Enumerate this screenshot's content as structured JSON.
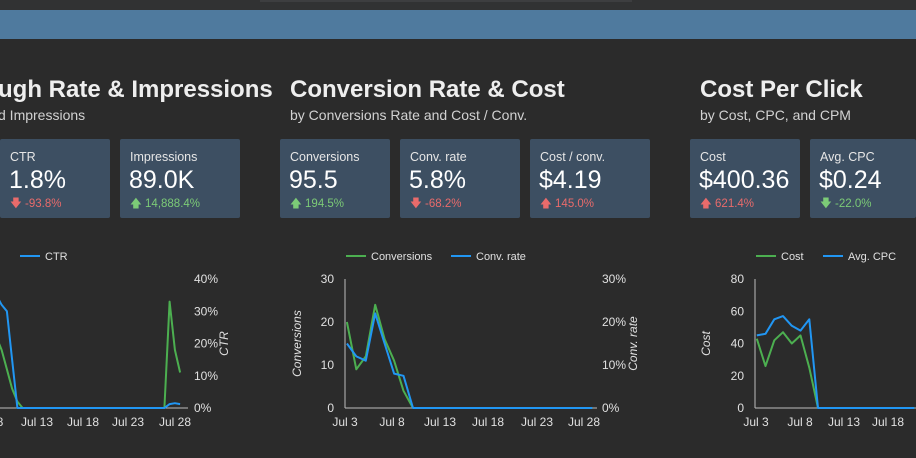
{
  "sections": [
    {
      "title": "ugh Rate & Impressions",
      "subtitle": "d Impressions",
      "cards": [
        {
          "label": "CTR",
          "value": "1.8%",
          "change": "-93.8%",
          "dir": "down"
        },
        {
          "label": "Impressions",
          "value": "89.0K",
          "change": "14,888.4%",
          "dir": "up"
        }
      ]
    },
    {
      "title": "Conversion Rate & Cost",
      "subtitle": "by Conversions Rate and Cost / Conv.",
      "cards": [
        {
          "label": "Conversions",
          "value": "95.5",
          "change": "194.5%",
          "dir": "up"
        },
        {
          "label": "Conv. rate",
          "value": "5.8%",
          "change": "-68.2%",
          "dir": "down"
        },
        {
          "label": "Cost / conv.",
          "value": "$4.19",
          "change": "145.0%",
          "dir": "up"
        }
      ]
    },
    {
      "title": "Cost Per Click",
      "subtitle": "by Cost, CPC, and CPM",
      "cards": [
        {
          "label": "Cost",
          "value": "$400.36",
          "change": "621.4%",
          "dir": "up"
        },
        {
          "label": "Avg. CPC",
          "value": "$0.24",
          "change": "-22.0%",
          "dir": "down"
        }
      ]
    }
  ],
  "colors": {
    "green": "#4caf50",
    "blue": "#2196f3",
    "negative": "#e96b6b",
    "positive": "#7ccb77"
  },
  "chart_data": [
    {
      "type": "line",
      "x_ticks": [
        "8",
        "Jul 13",
        "Jul 18",
        "Jul 23",
        "Jul 28"
      ],
      "series": [
        {
          "name": "",
          "color": "#4caf50",
          "axis": "left",
          "points": [
            [
              -8,
              24
            ],
            [
              -7,
              22
            ],
            [
              -6,
              18
            ],
            [
              -5,
              12
            ],
            [
              -4,
              6
            ],
            [
              -3,
              2
            ],
            [
              -2,
              0
            ],
            [
              0,
              0
            ],
            [
              5,
              0
            ],
            [
              10,
              0
            ],
            [
              15,
              0
            ],
            [
              20,
              0
            ],
            [
              25,
              0
            ],
            [
              26,
              33
            ],
            [
              27,
              18
            ],
            [
              28,
              11
            ]
          ]
        },
        {
          "name": "CTR",
          "color": "#2196f3",
          "axis": "right",
          "points": [
            [
              -8,
              40
            ],
            [
              -7,
              35
            ],
            [
              -6,
              32
            ],
            [
              -5,
              30
            ],
            [
              -4,
              15
            ],
            [
              -3,
              0
            ],
            [
              0,
              0
            ],
            [
              5,
              0
            ],
            [
              10,
              0
            ],
            [
              15,
              0
            ],
            [
              20,
              0
            ],
            [
              25,
              0
            ],
            [
              26,
              1.2
            ],
            [
              27,
              1.5
            ],
            [
              28,
              1.2
            ]
          ]
        }
      ],
      "y_right": {
        "label": "CTR",
        "ticks": [
          "0%",
          "10%",
          "20%",
          "30%",
          "40%"
        ],
        "range": [
          0,
          40
        ]
      },
      "y_left": {
        "range": [
          0,
          40
        ]
      }
    },
    {
      "type": "line",
      "x_ticks": [
        "Jul 3",
        "Jul 8",
        "Jul 13",
        "Jul 18",
        "Jul 23",
        "Jul 28"
      ],
      "series": [
        {
          "name": "Conversions",
          "color": "#4caf50",
          "axis": "left",
          "points": [
            [
              0,
              20
            ],
            [
              1,
              9
            ],
            [
              2,
              12
            ],
            [
              3,
              24
            ],
            [
              4,
              16
            ],
            [
              5,
              11
            ],
            [
              6,
              4
            ],
            [
              7,
              0
            ],
            [
              26,
              0
            ]
          ]
        },
        {
          "name": "Conv. rate",
          "color": "#2196f3",
          "axis": "right",
          "points": [
            [
              0,
              15
            ],
            [
              1,
              12
            ],
            [
              2,
              11
            ],
            [
              3,
              22
            ],
            [
              4,
              15
            ],
            [
              5,
              8
            ],
            [
              6,
              7.5
            ],
            [
              7,
              0
            ],
            [
              26,
              0
            ]
          ]
        }
      ],
      "y_left": {
        "label": "Conversions",
        "ticks": [
          "0",
          "10",
          "20",
          "30"
        ],
        "range": [
          0,
          30
        ]
      },
      "y_right": {
        "label": "Conv. rate",
        "ticks": [
          "0%",
          "10%",
          "20%",
          "30%"
        ],
        "range": [
          0,
          30
        ]
      }
    },
    {
      "type": "line",
      "x_ticks": [
        "Jul 3",
        "Jul 8",
        "Jul 13",
        "Jul 18"
      ],
      "series": [
        {
          "name": "Cost",
          "color": "#4caf50",
          "axis": "left",
          "points": [
            [
              0,
              43
            ],
            [
              1,
              26
            ],
            [
              2,
              42
            ],
            [
              3,
              47
            ],
            [
              4,
              40
            ],
            [
              5,
              45
            ],
            [
              6,
              25
            ],
            [
              7,
              0
            ],
            [
              18,
              0
            ]
          ]
        },
        {
          "name": "Avg. CPC",
          "color": "#2196f3",
          "axis": "left",
          "points": [
            [
              0,
              45
            ],
            [
              1,
              46
            ],
            [
              2,
              55
            ],
            [
              3,
              57
            ],
            [
              4,
              51
            ],
            [
              5,
              48
            ],
            [
              6,
              55
            ],
            [
              7,
              0
            ],
            [
              18,
              0
            ]
          ]
        }
      ],
      "y_left": {
        "label": "Cost",
        "ticks": [
          "0",
          "20",
          "40",
          "60",
          "80"
        ],
        "range": [
          0,
          80
        ]
      }
    }
  ]
}
